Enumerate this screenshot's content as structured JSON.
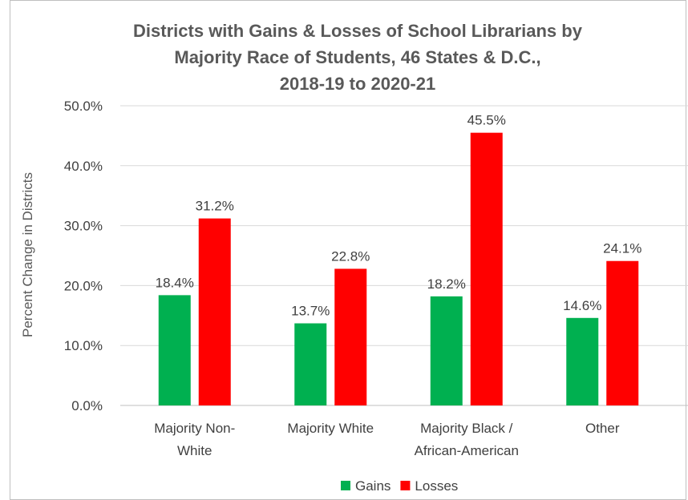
{
  "chart_data": {
    "type": "bar",
    "title_lines": [
      "Districts with Gains & Losses of School Librarians by",
      "Majority Race of Students, 46 States & D.C.,",
      "2018-19 to 2020-21"
    ],
    "ylabel": "Percent Change in Districts",
    "xlabel": "",
    "ylim": [
      0,
      50
    ],
    "yticks": [
      "0.0%",
      "10.0%",
      "20.0%",
      "30.0%",
      "40.0%",
      "50.0%"
    ],
    "grid": true,
    "legend_position": "bottom",
    "categories": [
      [
        "Majority Non-",
        "White"
      ],
      [
        "Majority White"
      ],
      [
        "Majority Black /",
        "African-American"
      ],
      [
        "Other"
      ]
    ],
    "series": [
      {
        "name": "Gains",
        "color": "#00b050",
        "values": [
          18.4,
          13.7,
          18.2,
          14.6
        ],
        "labels": [
          "18.4%",
          "13.7%",
          "18.2%",
          "14.6%"
        ]
      },
      {
        "name": "Losses",
        "color": "#ff0000",
        "values": [
          31.2,
          22.8,
          45.5,
          24.1
        ],
        "labels": [
          "31.2%",
          "22.8%",
          "45.5%",
          "24.1%"
        ]
      }
    ]
  }
}
